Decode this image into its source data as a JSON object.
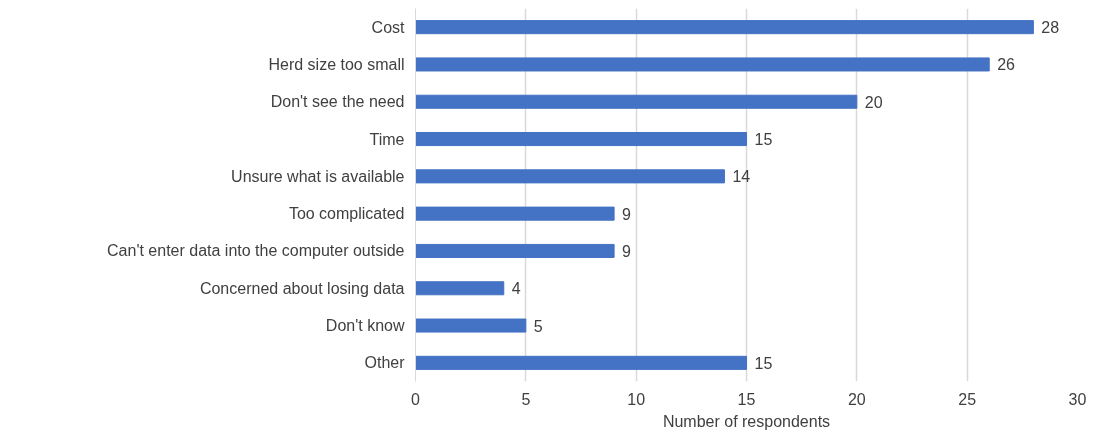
{
  "chart_data": {
    "type": "bar",
    "orientation": "horizontal",
    "xlabel": "Number of respondents",
    "categories": [
      "Cost",
      "Herd size too small",
      "Don't see the need",
      "Time",
      "Unsure what is available",
      "Too complicated",
      "Can't enter data into the computer outside",
      "Concerned about losing data",
      "Don't know",
      "Other"
    ],
    "values": [
      28,
      26,
      20,
      15,
      14,
      9,
      9,
      4,
      5,
      15
    ],
    "color": "#4472c4",
    "xlim": [
      0,
      30
    ],
    "xticks": [
      0,
      5,
      10,
      15,
      20,
      25,
      30
    ],
    "grid": "x",
    "data_labels": true
  }
}
